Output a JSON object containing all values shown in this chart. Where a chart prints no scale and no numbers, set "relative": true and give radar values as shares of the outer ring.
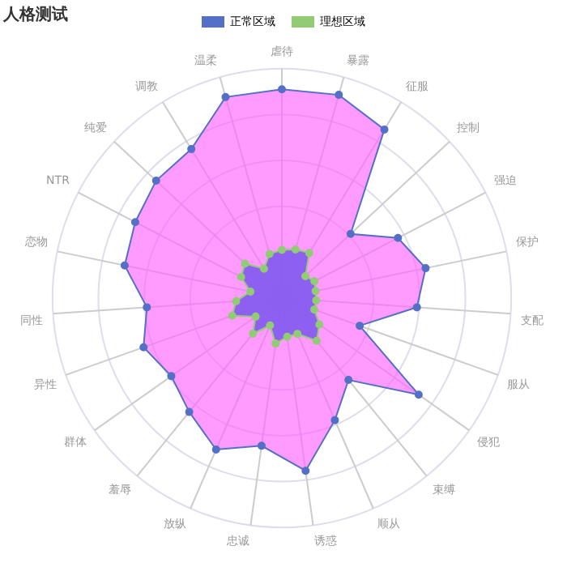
{
  "chart_data": {
    "type": "radar",
    "title": "人格测试",
    "relative": true,
    "legend": "top",
    "grid": true,
    "marker": "circle",
    "categories": [
      "虐待",
      "暴露",
      "征服",
      "控制",
      "强迫",
      "保护",
      "支配",
      "服从",
      "侵犯",
      "束缚",
      "顺从",
      "诱惑",
      "忠诚",
      "放纵",
      "羞辱",
      "群体",
      "异性",
      "同性",
      "恋物",
      "NTR",
      "纯爱",
      "调教",
      "温柔"
    ],
    "series": [
      {
        "name": "正常区域",
        "color": "#5470c6",
        "values": [
          0.91,
          0.92,
          0.86,
          0.41,
          0.57,
          0.64,
          0.59,
          0.36,
          0.73,
          0.46,
          0.58,
          0.76,
          0.65,
          0.72,
          0.64,
          0.59,
          0.64,
          0.59,
          0.7,
          0.72,
          0.75,
          0.76,
          0.91
        ]
      },
      {
        "name": "理想区域",
        "color": "#91cc75",
        "values": [
          0.21,
          0.22,
          0.23,
          0.14,
          0.16,
          0.15,
          0.15,
          0.15,
          0.2,
          0.24,
          0.17,
          0.17,
          0.2,
          0.13,
          0.2,
          0.14,
          0.23,
          0.2,
          0.14,
          0.2,
          0.22,
          0.15,
          0.2
        ]
      }
    ]
  }
}
